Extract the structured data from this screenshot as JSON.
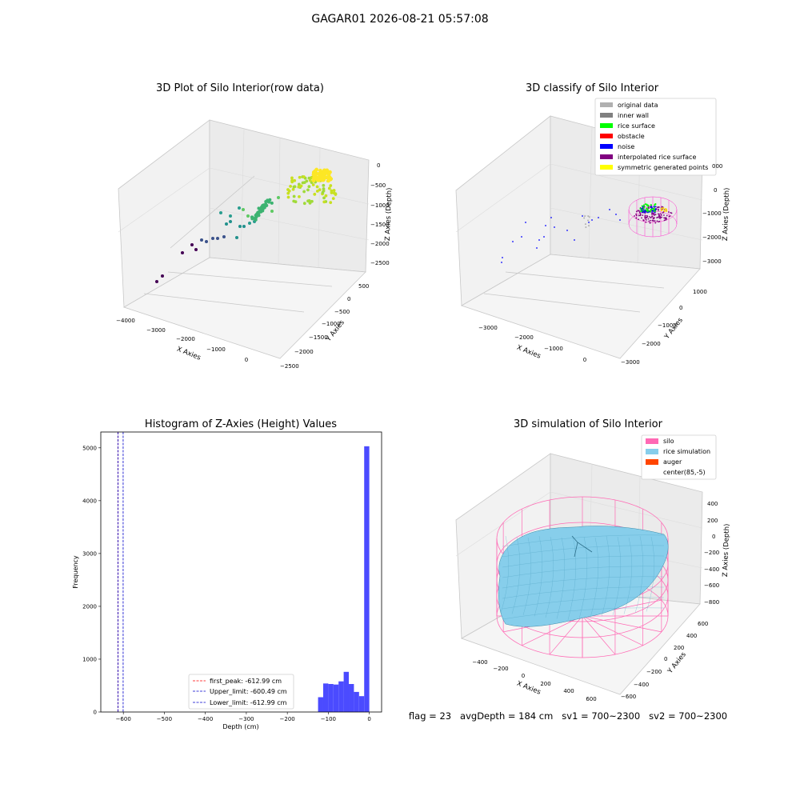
{
  "suptitle": "GAGAR01 2026-08-21 05:57:08",
  "footer": {
    "flag": "flag = 23",
    "avg_depth": "avgDepth = 184 cm",
    "sv1": "sv1 = 700~2300",
    "sv2": "sv2 = 700~2300"
  },
  "colors": {
    "original_data": "#b0b0b0",
    "inner_wall": "#808080",
    "rice_surface": "#00ff00",
    "obstacle": "#ff0000",
    "noise": "#0000ff",
    "interpolated_rice_surface": "#800080",
    "symmetric_generated_points": "#ffff00",
    "silo": "#ff69b4",
    "rice_simulation": "#87ceeb",
    "auger": "#ff4500",
    "histogram": "#4b4bff",
    "first_peak_line": "#ff0000",
    "limit_line": "#0000cc"
  },
  "chart_data": [
    {
      "type": "scatter",
      "title": "3D Plot of Silo Interior(row data)",
      "xlabel": "X Axies",
      "ylabel": "Y Axies",
      "zlabel": "Z Axies (Depth)",
      "x_ticks": [
        "−4000",
        "−3000",
        "−2000",
        "−1000",
        "0"
      ],
      "y_ticks": [
        "−2500",
        "−2000",
        "−1500",
        "−1000",
        "−500",
        "0",
        "500"
      ],
      "z_ticks": [
        "−2500",
        "−2000",
        "−1500",
        "−1000",
        "−500",
        "0"
      ]
    },
    {
      "type": "scatter",
      "title": "3D classify of Silo Interior",
      "xlabel": "X Axies",
      "ylabel": "Y Axies",
      "zlabel": "Z Axies (Depth)",
      "x_ticks": [
        "−3000",
        "−2000",
        "−1000",
        "0"
      ],
      "y_ticks": [
        "−3000",
        "−2000",
        "−1000",
        "0",
        "1000"
      ],
      "z_ticks": [
        "−3000",
        "−2000",
        "−1000",
        "0",
        "000"
      ],
      "legend": [
        {
          "label": "original data",
          "color_key": "original_data"
        },
        {
          "label": "inner wall",
          "color_key": "inner_wall"
        },
        {
          "label": "rice surface",
          "color_key": "rice_surface"
        },
        {
          "label": "obstacle",
          "color_key": "obstacle"
        },
        {
          "label": "noise",
          "color_key": "noise"
        },
        {
          "label": "interpolated rice surface",
          "color_key": "interpolated_rice_surface"
        },
        {
          "label": "symmetric generated points",
          "color_key": "symmetric_generated_points"
        }
      ],
      "legend_position": "top-right"
    },
    {
      "type": "bar",
      "title": "Histogram of Z-Axies (Height) Values",
      "xlabel": "Depth (cm)",
      "ylabel": "Frequency",
      "xlim": [
        -655,
        30
      ],
      "ylim": [
        0,
        5300
      ],
      "x_ticks": [
        -600,
        -500,
        -400,
        -300,
        -200,
        -100,
        0
      ],
      "y_ticks": [
        0,
        1000,
        2000,
        3000,
        4000,
        5000
      ],
      "bin_width": 12.5,
      "bins": [
        {
          "start": -125,
          "value": 280
        },
        {
          "start": -112.5,
          "value": 540
        },
        {
          "start": -100,
          "value": 530
        },
        {
          "start": -87.5,
          "value": 520
        },
        {
          "start": -75,
          "value": 580
        },
        {
          "start": -62.5,
          "value": 760
        },
        {
          "start": -50,
          "value": 530
        },
        {
          "start": -37.5,
          "value": 380
        },
        {
          "start": -25,
          "value": 300
        },
        {
          "start": -12.5,
          "value": 5030
        }
      ],
      "vlines": [
        {
          "label": "first_peak: -612.99 cm",
          "x": -612.99,
          "color_key": "first_peak_line"
        },
        {
          "label": "Upper_limit: -600.49 cm",
          "x": -600.49,
          "color_key": "limit_line"
        },
        {
          "label": "Lower_limit: -612.99 cm",
          "x": -612.99,
          "color_key": "limit_line"
        }
      ],
      "legend_position": "lower-center"
    },
    {
      "type": "area",
      "title": "3D simulation of Silo Interior",
      "xlabel": "X Axies",
      "ylabel": "Y Axies",
      "zlabel": "Z Axies (Depth)",
      "x_ticks": [
        "−400",
        "−200",
        "0",
        "200",
        "400",
        "600"
      ],
      "y_ticks": [
        "−600",
        "−400",
        "−200",
        "0",
        "200",
        "400",
        "600"
      ],
      "z_ticks": [
        "−800",
        "−600",
        "−400",
        "−200",
        "0",
        "200",
        "400"
      ],
      "legend": [
        {
          "label": "silo",
          "color_key": "silo"
        },
        {
          "label": "rice simulation",
          "color_key": "rice_simulation"
        },
        {
          "label": "auger",
          "color_key": "auger"
        },
        {
          "label": "center(85,-5)",
          "color_key": ""
        }
      ],
      "legend_position": "top-right"
    }
  ]
}
